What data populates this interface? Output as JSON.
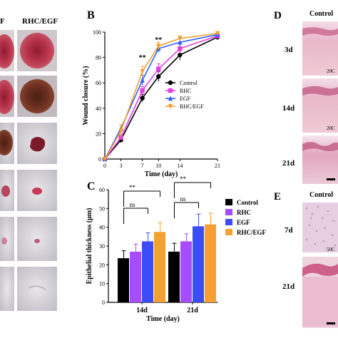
{
  "panels": {
    "left": {
      "label_partial": "F",
      "label_rhc_egf": "RHC/EGF"
    },
    "D": {
      "letter": "D",
      "column_label": "Control",
      "rows": [
        "3d",
        "14d",
        "21d"
      ],
      "scale_partial": "20C"
    },
    "E": {
      "letter": "E",
      "column_label": "Control",
      "rows": [
        "7d",
        "21d"
      ],
      "scale_partial": "50C"
    }
  },
  "chart_data": [
    {
      "panel": "B",
      "type": "line",
      "xlabel": "Time (day)",
      "ylabel": "Wound closure (%)",
      "x": [
        0,
        3,
        7,
        10,
        14,
        21
      ],
      "xlim": [
        0,
        21
      ],
      "ylim": [
        0,
        100
      ],
      "yticks": [
        0,
        20,
        40,
        60,
        80,
        100
      ],
      "legend_position": "center-right",
      "series": [
        {
          "name": "Control",
          "color": "#000000",
          "marker": "circle",
          "values": [
            0,
            15,
            48,
            65,
            82,
            96
          ],
          "errors": [
            0,
            2,
            3,
            4,
            4,
            2
          ]
        },
        {
          "name": "RHC",
          "color": "#e040e0",
          "marker": "square",
          "values": [
            0,
            17,
            54,
            71,
            87,
            97
          ],
          "errors": [
            0,
            2,
            3,
            4,
            4,
            2
          ]
        },
        {
          "name": "EGF",
          "color": "#3060ff",
          "marker": "triangle",
          "values": [
            0,
            24,
            62,
            87,
            92,
            98
          ],
          "errors": [
            0,
            3,
            4,
            3,
            3,
            2
          ]
        },
        {
          "name": "RHC/EGF",
          "color": "#f0a030",
          "marker": "triangle-down",
          "values": [
            0,
            22,
            69,
            89,
            95,
            99
          ],
          "errors": [
            0,
            5,
            4,
            3,
            2,
            1
          ]
        }
      ],
      "annotations": [
        {
          "x": 7,
          "text": "**"
        },
        {
          "x": 10,
          "text": "**"
        }
      ]
    },
    {
      "panel": "C",
      "type": "bar",
      "xlabel": "Time (day)",
      "ylabel": "Epithelial thickness (μm)",
      "categories": [
        "14d",
        "21d"
      ],
      "ylim": [
        0,
        60
      ],
      "yticks": [
        0,
        10,
        20,
        30,
        40,
        50,
        60
      ],
      "legend_position": "right",
      "series": [
        {
          "name": "Control",
          "color": "#000000",
          "values": [
            23.5,
            27
          ],
          "errors": [
            4,
            4.5
          ]
        },
        {
          "name": "RHC",
          "color": "#a64dff",
          "values": [
            27,
            32.5
          ],
          "errors": [
            4,
            4
          ]
        },
        {
          "name": "EGF",
          "color": "#3b4ef5",
          "values": [
            32.5,
            40.5
          ],
          "errors": [
            4.5,
            6.5
          ]
        },
        {
          "name": "RHC/EGF",
          "color": "#f5a030",
          "values": [
            37.5,
            41.5
          ],
          "errors": [
            5,
            6
          ]
        }
      ],
      "significance": [
        {
          "text": "**"
        },
        {
          "text": "ns"
        },
        {
          "text": "**"
        },
        {
          "text": "ns"
        }
      ]
    }
  ]
}
